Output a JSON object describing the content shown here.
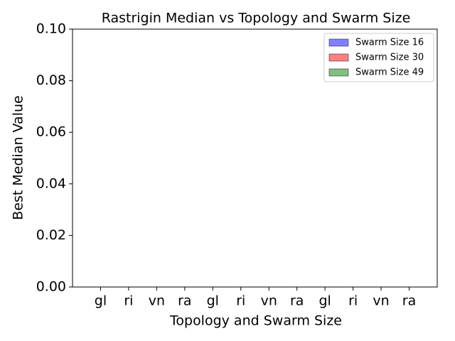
{
  "chart_data": {
    "type": "bar",
    "title": "Rastrigin Median vs Topology and Swarm Size",
    "x_label": "Topology and Swarm Size",
    "y_label": "Best Median Value",
    "categories": [
      "gl",
      "ri",
      "vn",
      "ra",
      "gl",
      "ri",
      "vn",
      "ra",
      "gl",
      "ri",
      "vn",
      "ra"
    ],
    "series": [
      {
        "name": "Swarm Size 16",
        "color": "#8080ff",
        "values": [
          0,
          0,
          0,
          0,
          null,
          null,
          null,
          null,
          null,
          null,
          null,
          null
        ]
      },
      {
        "name": "Swarm Size 30",
        "color": "#ff8080",
        "values": [
          null,
          null,
          null,
          null,
          0,
          0,
          0,
          0,
          null,
          null,
          null,
          null
        ]
      },
      {
        "name": "Swarm Size 49",
        "color": "#80c080",
        "values": [
          null,
          null,
          null,
          null,
          null,
          null,
          null,
          null,
          0,
          0,
          0,
          0
        ]
      }
    ],
    "ylim": [
      0,
      0.1
    ],
    "yticks": [
      {
        "value": 0,
        "label": "0.00"
      },
      {
        "value": 0.02,
        "label": "0.02"
      },
      {
        "value": 0.04,
        "label": "0.04"
      },
      {
        "value": 0.06,
        "label": "0.06"
      },
      {
        "value": 0.08,
        "label": "0.08"
      },
      {
        "value": 0.1,
        "label": "0.10"
      }
    ],
    "legend": "upper right"
  }
}
